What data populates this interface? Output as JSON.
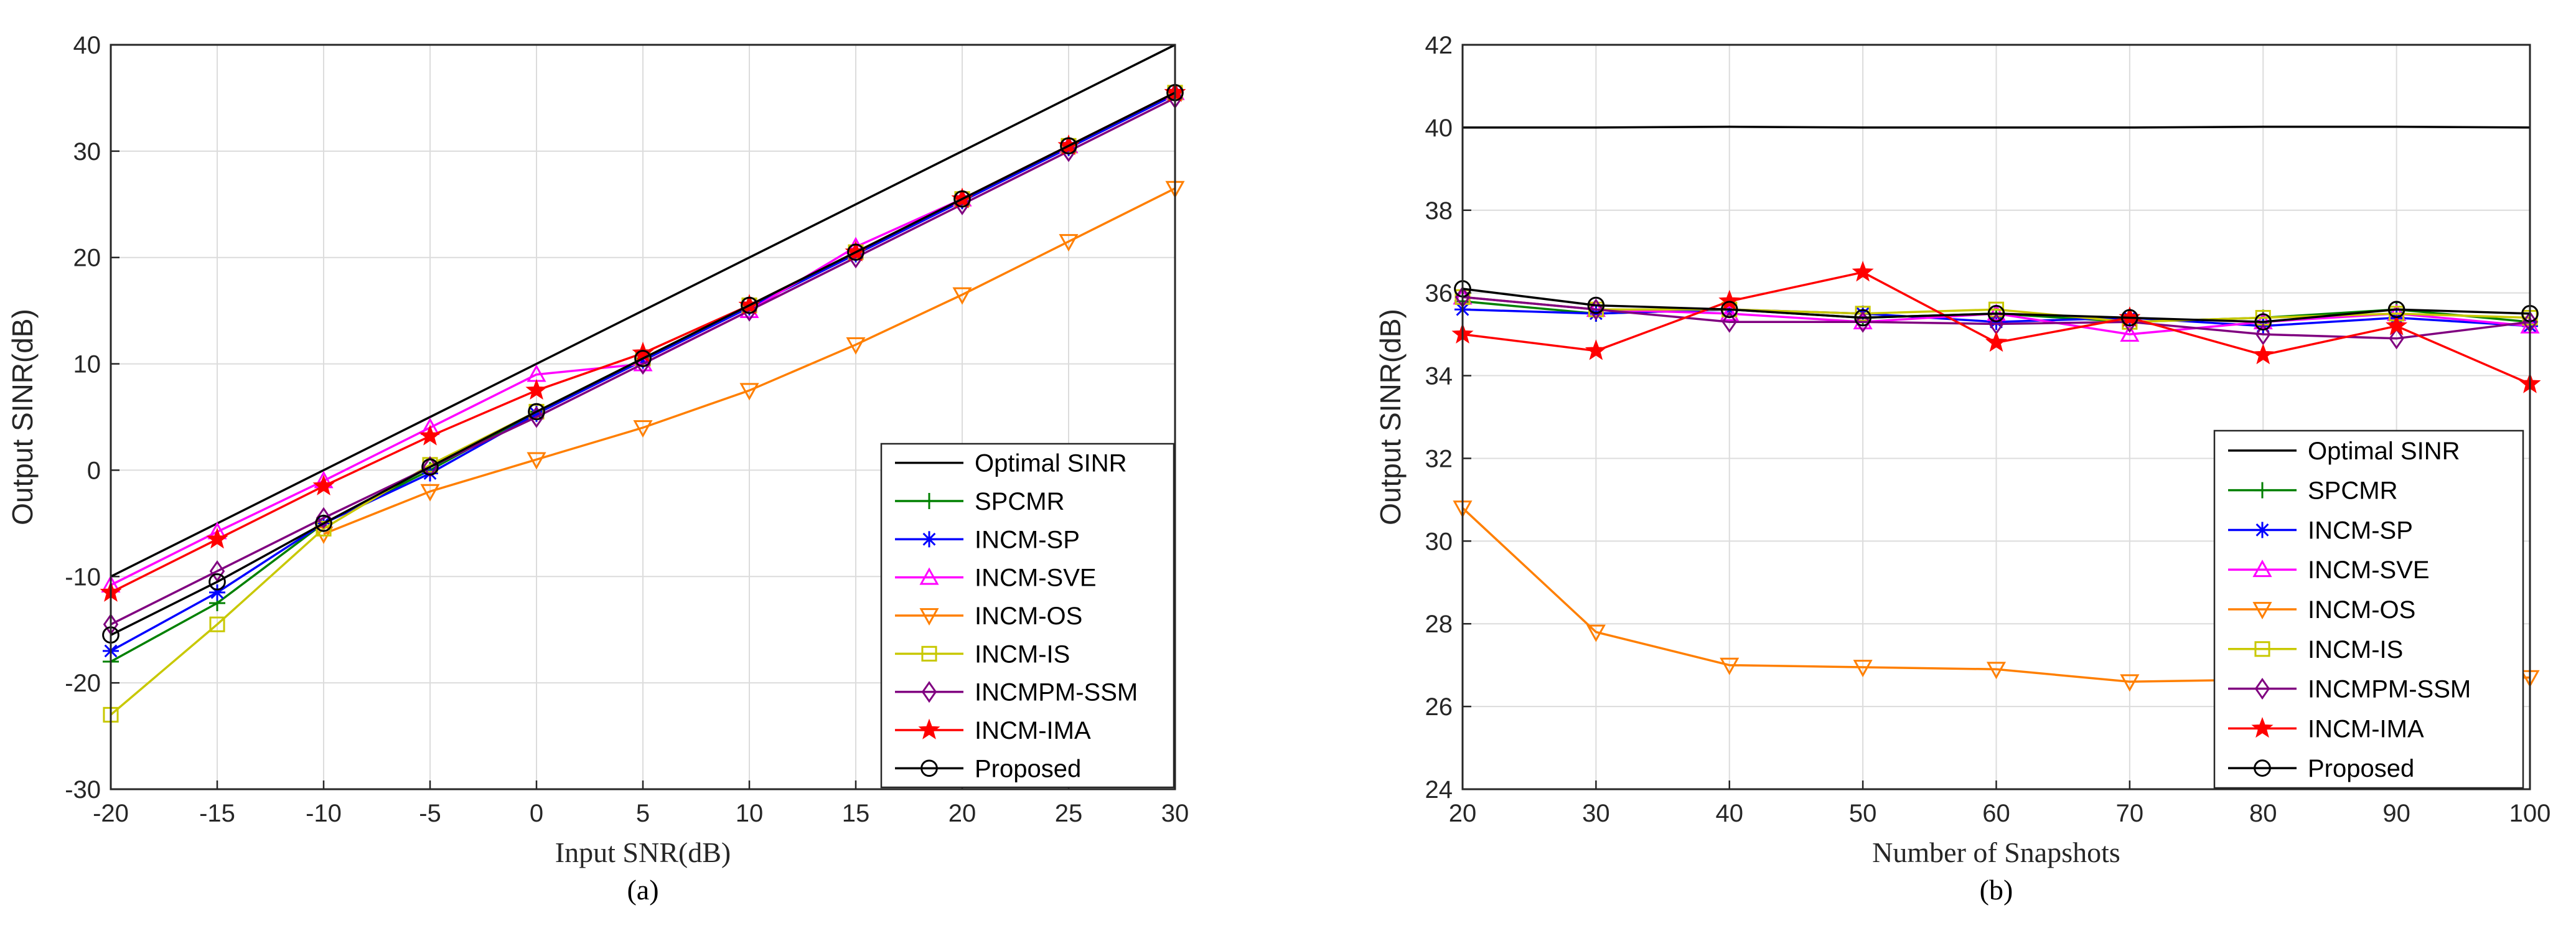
{
  "chart_data": [
    {
      "type": "line",
      "caption": "(a)",
      "xlabel": "Input SNR(dB)",
      "ylabel": "Output SINR(dB)",
      "xlim": [
        -20,
        30
      ],
      "ylim": [
        -30,
        40
      ],
      "xticks": [
        "-20",
        "-15",
        "-10",
        "-5",
        "0",
        "5",
        "10",
        "15",
        "20",
        "25",
        "30"
      ],
      "yticks": [
        "-30",
        "-20",
        "-10",
        "0",
        "10",
        "20",
        "30",
        "40"
      ],
      "grid": true,
      "legend_position": "bottom-right",
      "x": [
        -20,
        -15,
        -10,
        -5,
        0,
        5,
        10,
        15,
        20,
        25,
        30
      ],
      "series": [
        {
          "name": "Optimal SINR",
          "color": "#000000",
          "marker": "none",
          "values": [
            -10,
            -5,
            0,
            5,
            10,
            15,
            20,
            25,
            30,
            35,
            40
          ]
        },
        {
          "name": "SPCMR",
          "color": "#008000",
          "marker": "plus",
          "values": [
            -18,
            -12.5,
            -5,
            0,
            5.5,
            10.5,
            15.5,
            20.5,
            25.5,
            30.5,
            35.5
          ]
        },
        {
          "name": "INCM-SP",
          "color": "#0000ff",
          "marker": "asterisk",
          "values": [
            -17,
            -11.5,
            -5,
            -0.3,
            5.3,
            10.3,
            15.3,
            20.3,
            25.3,
            30.3,
            35.3
          ]
        },
        {
          "name": "INCM-SVE",
          "color": "#ff00ff",
          "marker": "triangle-up",
          "values": [
            -10.8,
            -5.8,
            -1,
            4,
            9,
            10,
            15,
            21,
            25.5,
            30.5,
            35.5
          ]
        },
        {
          "name": "INCM-OS",
          "color": "#ff7f00",
          "marker": "triangle-down",
          "values": [
            null,
            null,
            -6,
            -2,
            1,
            4,
            7.5,
            11.8,
            16.5,
            21.5,
            26.5
          ]
        },
        {
          "name": "INCM-IS",
          "color": "#c8c800",
          "marker": "square",
          "values": [
            -23,
            -14.5,
            -5.5,
            0.5,
            5.5,
            10.5,
            15.5,
            20.5,
            25.5,
            30.5,
            35.5
          ]
        },
        {
          "name": "INCMPM-SSM",
          "color": "#800080",
          "marker": "diamond",
          "values": [
            -14.5,
            -9.5,
            -4.5,
            0.3,
            5,
            10,
            15,
            20,
            25,
            30,
            35
          ]
        },
        {
          "name": "INCM-IMA",
          "color": "#ff0000",
          "marker": "star",
          "values": [
            -11.5,
            -6.5,
            -1.5,
            3.2,
            7.5,
            11,
            15.5,
            20.5,
            25.5,
            30.5,
            35.5
          ]
        },
        {
          "name": "Proposed",
          "color": "#000000",
          "marker": "circle",
          "values": [
            -15.5,
            -10.5,
            -5,
            0.3,
            5.5,
            10.5,
            15.5,
            20.5,
            25.5,
            30.5,
            35.5
          ]
        }
      ]
    },
    {
      "type": "line",
      "caption": "(b)",
      "xlabel": "Number of Snapshots",
      "ylabel": "Output SINR(dB)",
      "xlim": [
        20,
        100
      ],
      "ylim": [
        24,
        42
      ],
      "xticks": [
        "20",
        "30",
        "40",
        "50",
        "60",
        "70",
        "80",
        "90",
        "100"
      ],
      "yticks": [
        "24",
        "26",
        "28",
        "30",
        "32",
        "34",
        "36",
        "38",
        "40",
        "42"
      ],
      "grid": true,
      "legend_position": "bottom-right",
      "x": [
        20,
        30,
        40,
        50,
        60,
        70,
        80,
        90,
        100
      ],
      "series": [
        {
          "name": "Optimal SINR",
          "color": "#000000",
          "marker": "none",
          "values": [
            40,
            40,
            40.02,
            40,
            40,
            40,
            40.02,
            40.02,
            40
          ]
        },
        {
          "name": "SPCMR",
          "color": "#008000",
          "marker": "plus",
          "values": [
            35.8,
            35.5,
            35.6,
            35.4,
            35.5,
            35.3,
            35.4,
            35.6,
            35.3
          ]
        },
        {
          "name": "INCM-SP",
          "color": "#0000ff",
          "marker": "asterisk",
          "values": [
            35.6,
            35.5,
            35.6,
            35.5,
            35.3,
            35.4,
            35.2,
            35.4,
            35.2
          ]
        },
        {
          "name": "INCM-SVE",
          "color": "#ff00ff",
          "marker": "triangle-up",
          "values": [
            35.9,
            35.6,
            35.5,
            35.3,
            35.5,
            35.0,
            35.3,
            35.5,
            35.2
          ]
        },
        {
          "name": "INCM-OS",
          "color": "#ff7f00",
          "marker": "triangle-down",
          "values": [
            30.8,
            27.8,
            27.0,
            26.95,
            26.9,
            26.6,
            26.65,
            26.7,
            26.7
          ]
        },
        {
          "name": "INCM-IS",
          "color": "#c8c800",
          "marker": "square",
          "values": [
            35.9,
            35.6,
            35.6,
            35.5,
            35.6,
            35.3,
            35.4,
            35.5,
            35.4
          ]
        },
        {
          "name": "INCMPM-SSM",
          "color": "#800080",
          "marker": "diamond",
          "values": [
            35.9,
            35.6,
            35.3,
            35.3,
            35.25,
            35.3,
            35.0,
            34.9,
            35.3
          ]
        },
        {
          "name": "INCM-IMA",
          "color": "#ff0000",
          "marker": "star",
          "values": [
            35.0,
            34.6,
            35.8,
            36.5,
            34.8,
            35.4,
            34.5,
            35.2,
            33.8
          ]
        },
        {
          "name": "Proposed",
          "color": "#000000",
          "marker": "circle",
          "values": [
            36.1,
            35.7,
            35.6,
            35.4,
            35.5,
            35.4,
            35.3,
            35.6,
            35.5
          ]
        }
      ]
    }
  ]
}
